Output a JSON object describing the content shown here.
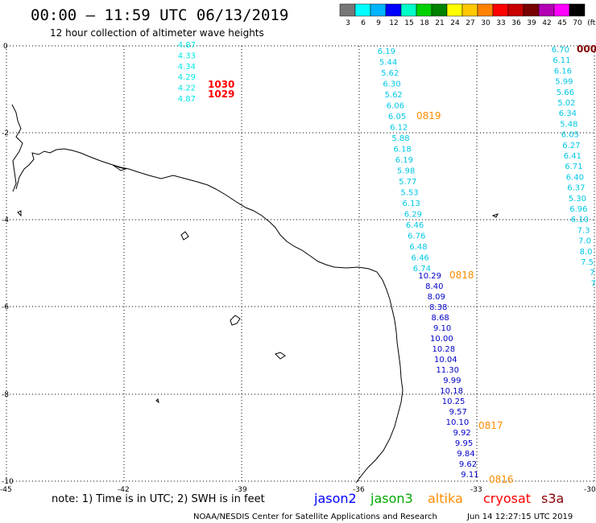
{
  "header": {
    "title": "00:00 – 11:59 UTC 06/13/2019",
    "subtitle": "12 hour collection of altimeter wave heights"
  },
  "colorbar": {
    "labels": [
      "3",
      "6",
      "9",
      "12",
      "15",
      "18",
      "21",
      "24",
      "27",
      "30",
      "33",
      "36",
      "39",
      "42",
      "45",
      "70",
      "(ft)"
    ],
    "colors": [
      "#777777",
      "#00ffff",
      "#00b4ff",
      "#0000ff",
      "#00ffc8",
      "#00d200",
      "#008200",
      "#ffff00",
      "#ffc800",
      "#ff8200",
      "#ff0000",
      "#c80000",
      "#780000",
      "#b400b4",
      "#ff00ff",
      "#000000"
    ]
  },
  "axes": {
    "x_labels": [
      "-45",
      "-42",
      "-39",
      "-36",
      "-33",
      "-30"
    ],
    "y_labels": [
      "0",
      "-2",
      "-4",
      "-6",
      "-8",
      "-10"
    ]
  },
  "tracks": [
    {
      "satellite": "cryosat",
      "color": "#00e6e6",
      "values": [
        "4.87",
        "4.33",
        "4.34",
        "4.29",
        "4.22",
        "4.87"
      ]
    },
    {
      "satellite": "cryosat-times",
      "color": "#ff0000",
      "values": [
        "1030",
        "1029"
      ]
    },
    {
      "satellite": "jason2",
      "color": "#00c8e6",
      "values": [
        "6.19",
        "5.44",
        "5.62",
        "6.30",
        "5.62",
        "6.06",
        "6.05",
        "6.12",
        "5.88",
        "6.18",
        "6.19",
        "5.98",
        "5.77",
        "5.53",
        "6.13",
        "6.29",
        "6.46",
        "6.76",
        "6.48",
        "6.46",
        "6.74"
      ]
    },
    {
      "satellite": "jason2-blue",
      "color": "#0000c8",
      "values": [
        "10.29",
        "8.40",
        "8.09",
        "8.38",
        "8.68",
        "9.10",
        "10.00",
        "10.28",
        "10.04",
        "11.30",
        "9.99",
        "10.18",
        "10.25",
        "9.57",
        "10.10",
        "9.92",
        "9.95",
        "9.84",
        "9.62",
        "9.11"
      ]
    },
    {
      "satellite": "altika-times",
      "color": "#ff8c00",
      "values": [
        "0819",
        "0818",
        "0817",
        "0816"
      ]
    },
    {
      "satellite": "east-track",
      "color": "#00c8e6",
      "values": [
        "6.70",
        "6.11",
        "6.16",
        "5.99",
        "5.66",
        "5.02",
        "6.34",
        "5.48",
        "6.05",
        "6.27",
        "6.41",
        "6.71",
        "6.40",
        "6.37",
        "5.30",
        "6.96",
        "6.10",
        "7.3",
        "7.0",
        "8.0",
        "7.5",
        "7",
        "7"
      ]
    },
    {
      "satellite": "east-time",
      "color": "#800000",
      "values": [
        "000"
      ]
    }
  ],
  "footer": {
    "note": "note:  1) Time is in UTC;  2) SWH is in feet",
    "satellites": [
      {
        "name": "jason2",
        "color": "#0000ff"
      },
      {
        "name": "jason3",
        "color": "#00aa00"
      },
      {
        "name": "altika",
        "color": "#ff8c00"
      },
      {
        "name": "cryosat",
        "color": "#ff0000"
      },
      {
        "name": "s3a",
        "color": "#8b0000"
      }
    ],
    "credit": "NOAA/NESDIS Center for Satellite Applications and Research",
    "timestamp": "Jun 14 12:27:15 UTC 2019"
  }
}
